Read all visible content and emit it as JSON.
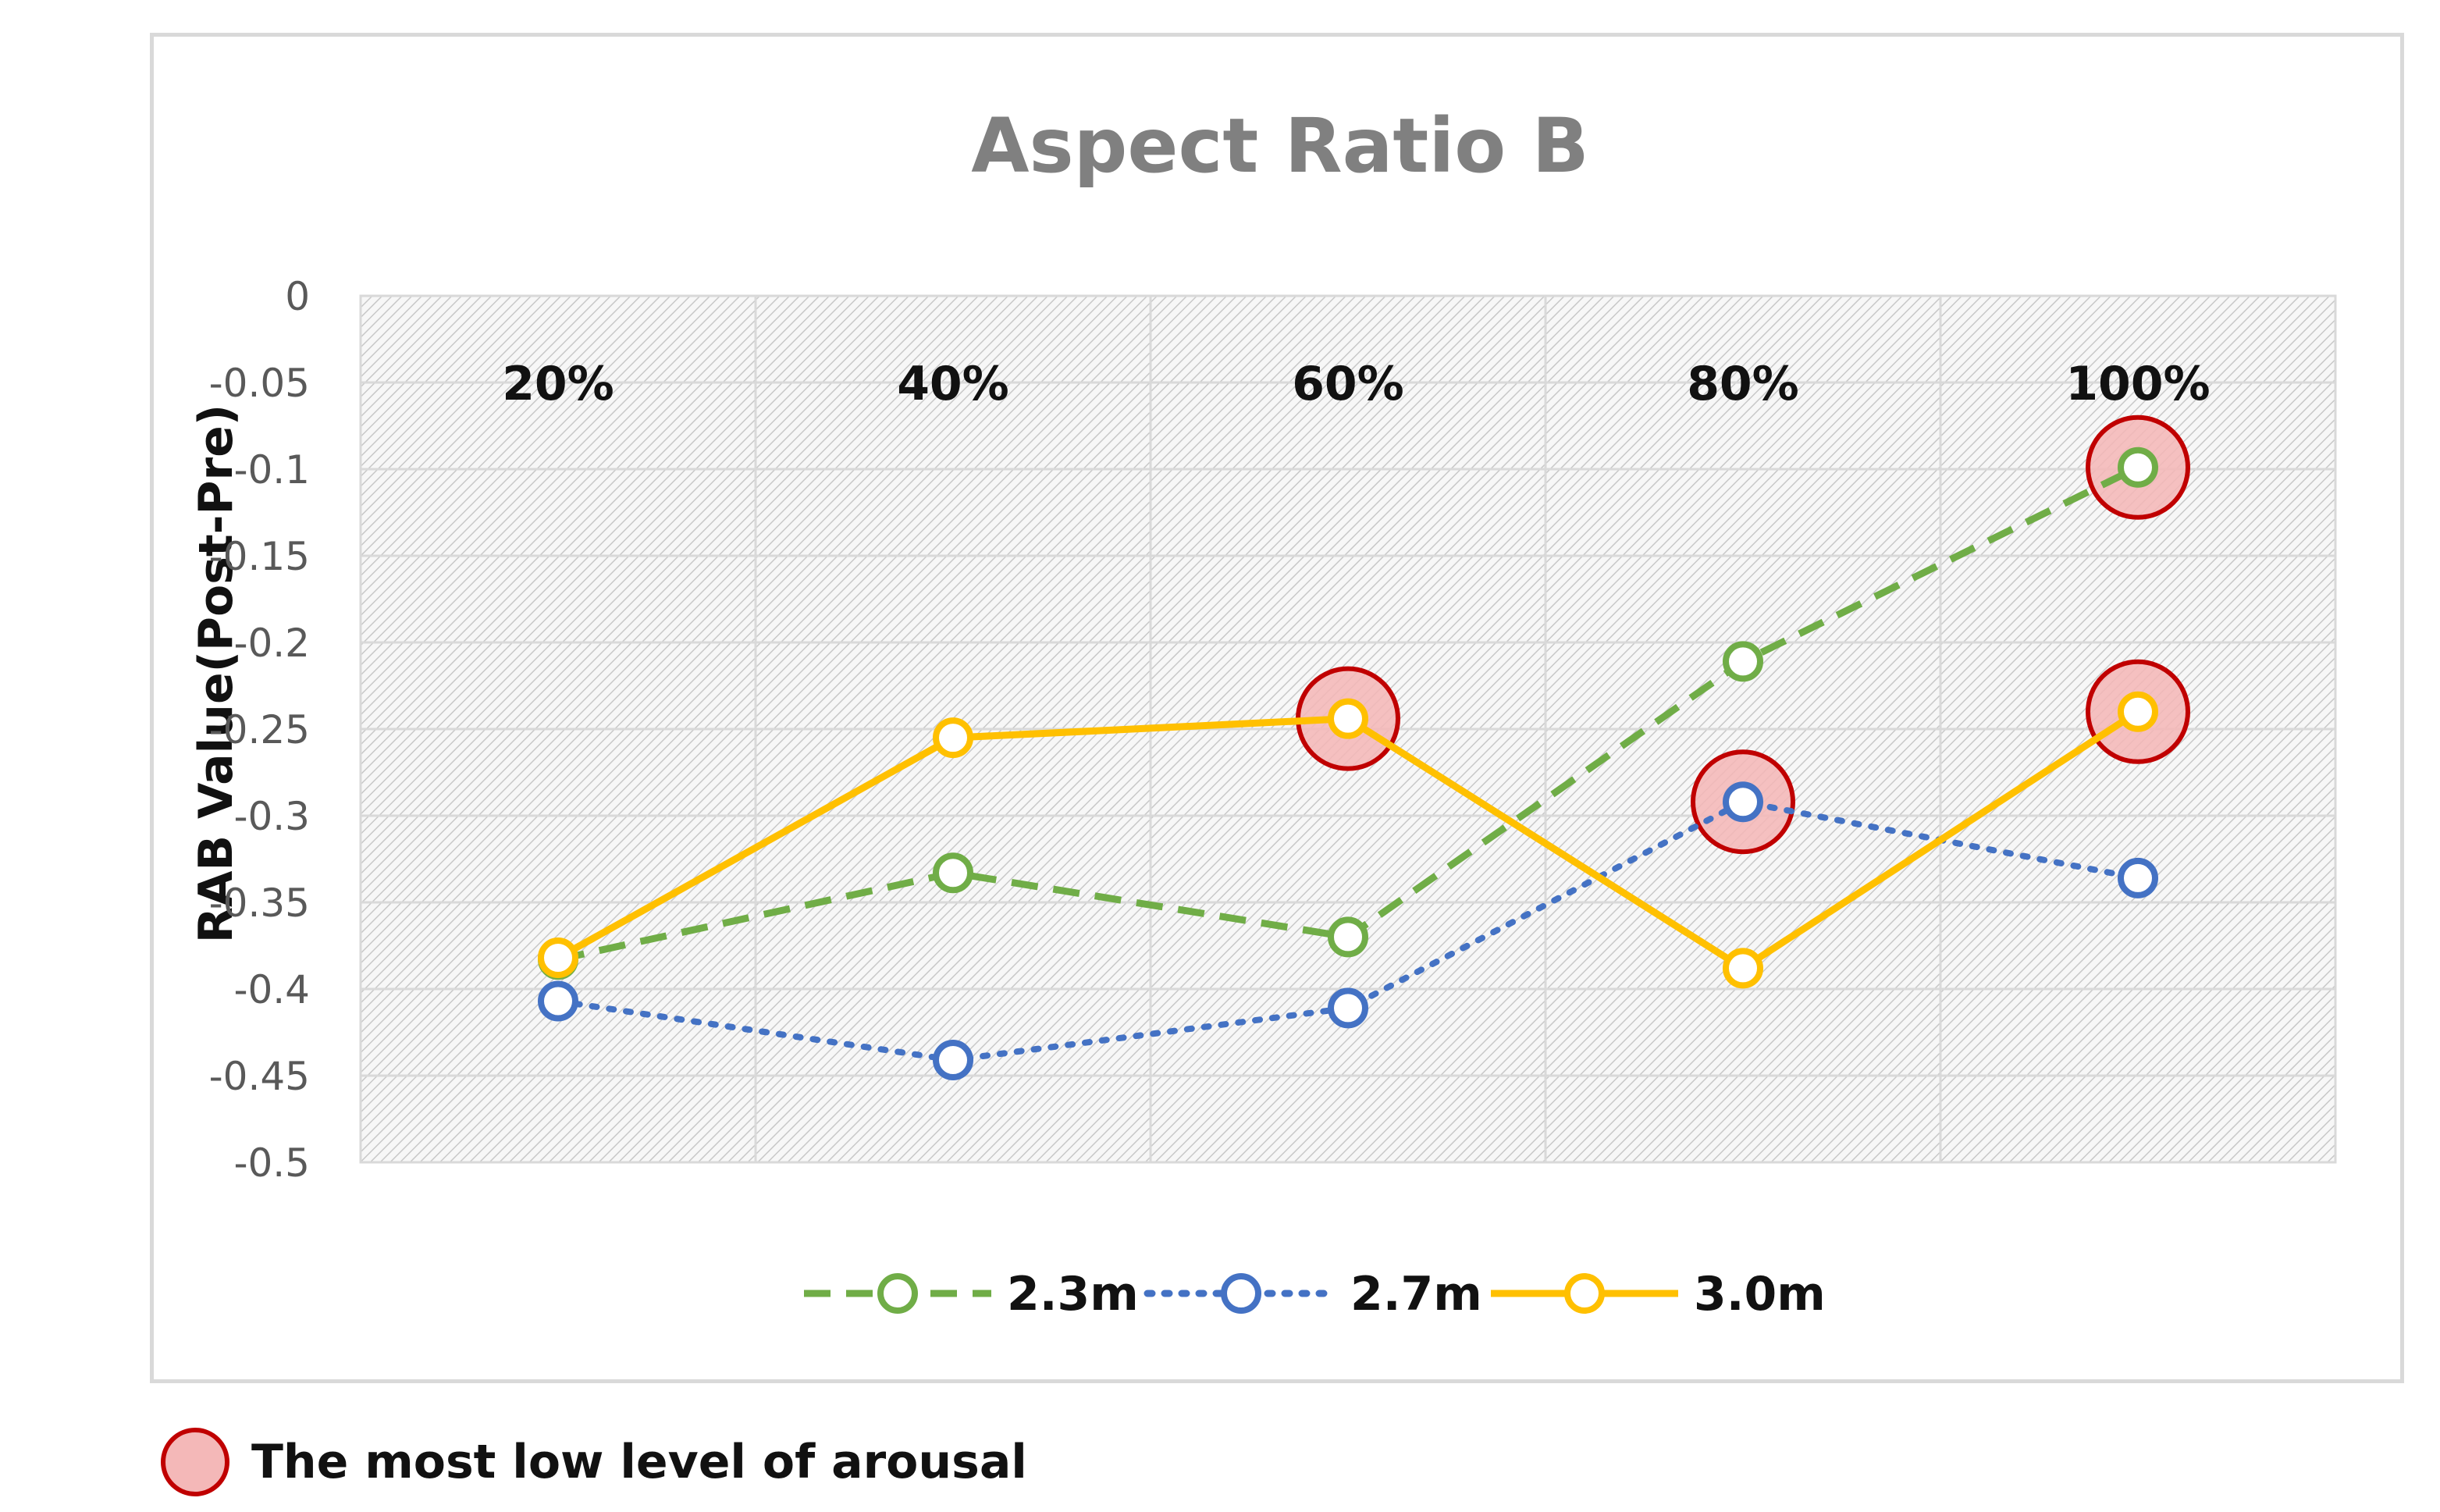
{
  "chart_data": {
    "type": "line",
    "title": "Aspect Ratio B",
    "xlabel": "",
    "ylabel": "RAB Value(Post-Pre)",
    "categories": [
      "20%",
      "40%",
      "60%",
      "80%",
      "100%"
    ],
    "ylim": [
      -0.5,
      0
    ],
    "yticks": [
      0,
      -0.05,
      -0.1,
      -0.15,
      -0.2,
      -0.25,
      -0.3,
      -0.35,
      -0.4,
      -0.45,
      -0.5
    ],
    "ytick_labels": [
      "0",
      "-0.05",
      "-0.1",
      "-0.15",
      "-0.2",
      "-0.25",
      "-0.3",
      "-0.35",
      "-0.4",
      "-0.45",
      "-0.5"
    ],
    "grid": true,
    "legend_position": "bottom",
    "series": [
      {
        "name": "2.3m",
        "values": [
          -0.383,
          -0.333,
          -0.37,
          -0.211,
          -0.099
        ],
        "color": "#70ad47",
        "dash": "dashed",
        "marker": "open-circle",
        "highlight": [
          false,
          false,
          false,
          false,
          true
        ]
      },
      {
        "name": "2.7m",
        "values": [
          -0.407,
          -0.441,
          -0.411,
          -0.292,
          -0.336
        ],
        "color": "#4472c4",
        "dash": "dotted",
        "marker": "open-circle",
        "highlight": [
          false,
          false,
          false,
          true,
          false
        ]
      },
      {
        "name": "3.0m",
        "values": [
          -0.382,
          -0.255,
          -0.244,
          -0.388,
          -0.24
        ],
        "color": "#ffc000",
        "dash": "solid",
        "marker": "open-circle",
        "highlight": [
          false,
          false,
          true,
          false,
          true
        ]
      }
    ],
    "annotation": {
      "highlight_fill": "#f4b6b6",
      "highlight_stroke": "#c00000",
      "text": "The most low level of arousal"
    }
  }
}
